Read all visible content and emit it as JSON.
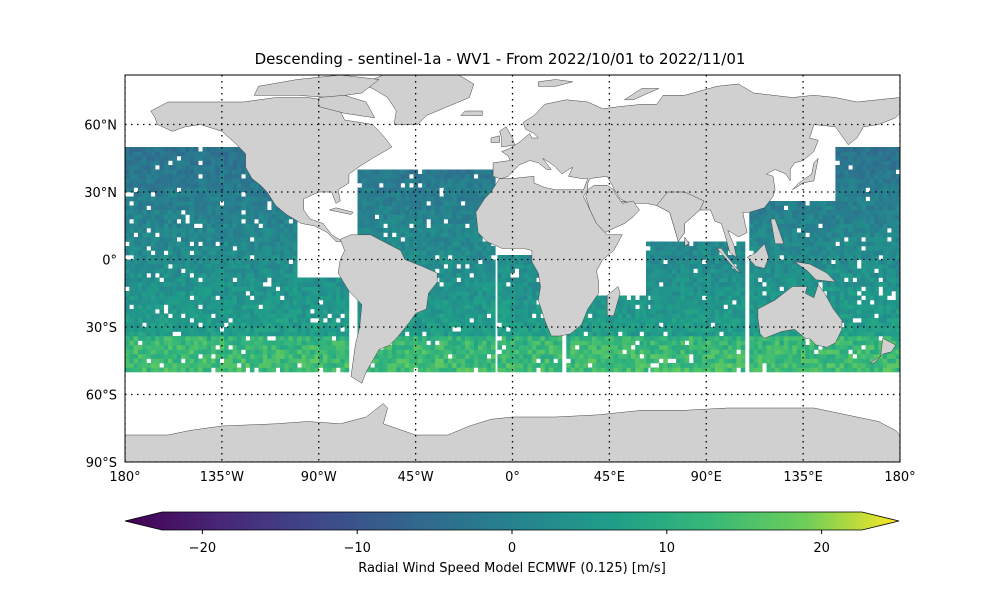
{
  "title": "Descending - sentinel-1a - WV1 - From 2022/10/01 to 2022/11/01",
  "map": {
    "lon_range": [
      -180,
      180
    ],
    "lat_range": [
      -90,
      90
    ],
    "gridlines": "dotted",
    "land_color": "#d0d0d0",
    "ocean_color": "#ffffff",
    "lat_ticks": [
      {
        "value": 60,
        "label": "60°N"
      },
      {
        "value": 30,
        "label": "30°N"
      },
      {
        "value": 0,
        "label": "0°"
      },
      {
        "value": -30,
        "label": "30°S"
      },
      {
        "value": -60,
        "label": "60°S"
      },
      {
        "value": -90,
        "label": "90°S"
      }
    ],
    "lon_ticks": [
      {
        "value": -180,
        "label": "180°"
      },
      {
        "value": -135,
        "label": "135°W"
      },
      {
        "value": -90,
        "label": "90°W"
      },
      {
        "value": -45,
        "label": "45°W"
      },
      {
        "value": 0,
        "label": "0°"
      },
      {
        "value": 45,
        "label": "45°E"
      },
      {
        "value": 90,
        "label": "90°E"
      },
      {
        "value": 135,
        "label": "135°E"
      },
      {
        "value": 180,
        "label": "180°"
      }
    ]
  },
  "colorbar": {
    "label": "Radial Wind Speed Model ECMWF (0.125) [m/s]",
    "colormap": "viridis",
    "range": [
      -25,
      25
    ],
    "extend": "both",
    "ticks": [
      {
        "value": -20,
        "label": "−20"
      },
      {
        "value": -10,
        "label": "−10"
      },
      {
        "value": 0,
        "label": "0"
      },
      {
        "value": 10,
        "label": "10"
      },
      {
        "value": 20,
        "label": "20"
      }
    ]
  },
  "swaths": [
    {
      "name": "east-pacific",
      "lon": [
        -180,
        -101
      ],
      "lat": [
        -50,
        49
      ]
    },
    {
      "name": "south-america-west",
      "lon": [
        -100,
        -77
      ],
      "lat": [
        -50,
        -8
      ]
    },
    {
      "name": "atlantic-central",
      "lon": [
        -72,
        -8
      ],
      "lat": [
        -50,
        39
      ]
    },
    {
      "name": "atlantic-south-east",
      "lon": [
        -7,
        23
      ],
      "lat": [
        -50,
        2
      ]
    },
    {
      "name": "indian-west",
      "lon": [
        25,
        62
      ],
      "lat": [
        -50,
        -17
      ]
    },
    {
      "name": "indian-central",
      "lon": [
        62,
        108
      ],
      "lat": [
        -50,
        8
      ]
    },
    {
      "name": "pacific-west",
      "lon": [
        110,
        150
      ],
      "lat": [
        -50,
        25
      ]
    },
    {
      "name": "pacific-west-edge",
      "lon": [
        150,
        180
      ],
      "lat": [
        -50,
        49
      ]
    }
  ]
}
